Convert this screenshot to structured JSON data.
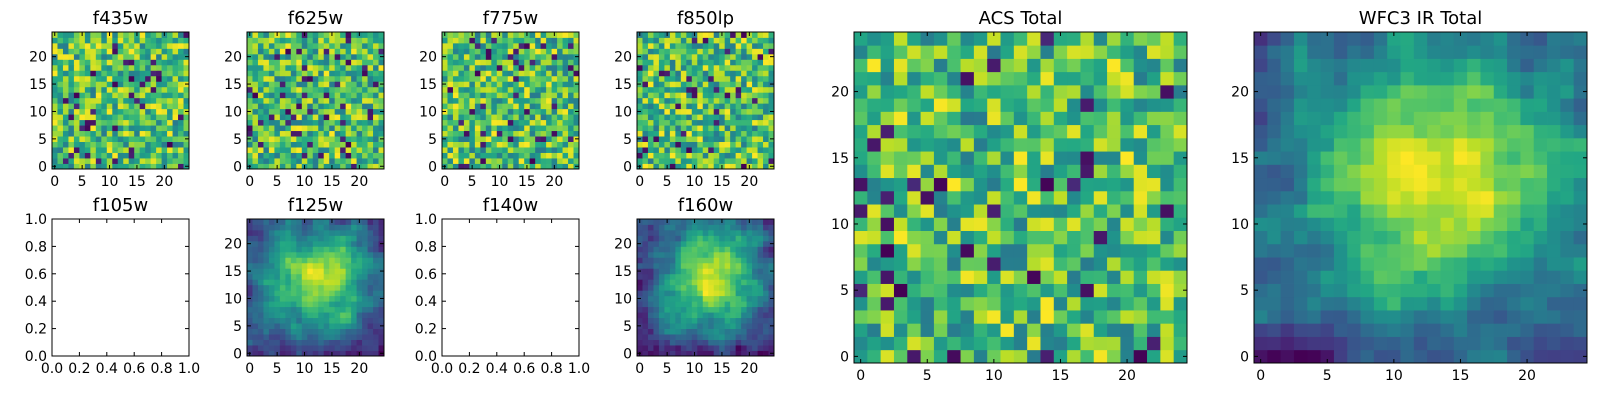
{
  "chart_data": [
    {
      "id": "f435w",
      "type": "heatmap",
      "title": "f435w",
      "grid": [
        25,
        25
      ],
      "seed": 11,
      "colormap": "viridis",
      "value_range": [
        0,
        1
      ],
      "structure": "noise",
      "xticks": [
        "0",
        "5",
        "10",
        "15",
        "20"
      ],
      "yticks": [
        "0",
        "5",
        "10",
        "15",
        "20"
      ],
      "has_data": true
    },
    {
      "id": "f625w",
      "type": "heatmap",
      "title": "f625w",
      "grid": [
        25,
        25
      ],
      "seed": 23,
      "colormap": "viridis",
      "value_range": [
        0,
        1
      ],
      "structure": "noise",
      "xticks": [
        "0",
        "5",
        "10",
        "15",
        "20"
      ],
      "yticks": [
        "0",
        "5",
        "10",
        "15",
        "20"
      ],
      "has_data": true
    },
    {
      "id": "f775w",
      "type": "heatmap",
      "title": "f775w",
      "grid": [
        25,
        25
      ],
      "seed": 37,
      "colormap": "viridis",
      "value_range": [
        0,
        1
      ],
      "structure": "noise",
      "xticks": [
        "0",
        "5",
        "10",
        "15",
        "20"
      ],
      "yticks": [
        "0",
        "5",
        "10",
        "15",
        "20"
      ],
      "has_data": true
    },
    {
      "id": "f850lp",
      "type": "heatmap",
      "title": "f850lp",
      "grid": [
        25,
        25
      ],
      "seed": 41,
      "colormap": "viridis",
      "value_range": [
        0,
        1
      ],
      "structure": "noise",
      "xticks": [
        "0",
        "5",
        "10",
        "15",
        "20"
      ],
      "yticks": [
        "0",
        "5",
        "10",
        "15",
        "20"
      ],
      "has_data": true
    },
    {
      "id": "f105w",
      "type": "heatmap",
      "title": "f105w",
      "grid": [
        0,
        0
      ],
      "xticks": [
        "0.0",
        "0.2",
        "0.4",
        "0.6",
        "0.8",
        "1.0"
      ],
      "yticks": [
        "0.0",
        "0.2",
        "0.4",
        "0.6",
        "0.8",
        "1.0"
      ],
      "xlim": [
        0,
        1
      ],
      "ylim": [
        0,
        1
      ],
      "has_data": false
    },
    {
      "id": "f125w",
      "type": "heatmap",
      "title": "f125w",
      "grid": [
        25,
        25
      ],
      "seed": 53,
      "colormap": "viridis",
      "value_range": [
        0,
        1
      ],
      "structure": "smooth-central",
      "xticks": [
        "0",
        "5",
        "10",
        "15",
        "20"
      ],
      "yticks": [
        "0",
        "5",
        "10",
        "15",
        "20"
      ],
      "has_data": true
    },
    {
      "id": "f140w",
      "type": "heatmap",
      "title": "f140w",
      "grid": [
        0,
        0
      ],
      "xticks": [
        "0.0",
        "0.2",
        "0.4",
        "0.6",
        "0.8",
        "1.0"
      ],
      "yticks": [
        "0.0",
        "0.2",
        "0.4",
        "0.6",
        "0.8",
        "1.0"
      ],
      "xlim": [
        0,
        1
      ],
      "ylim": [
        0,
        1
      ],
      "has_data": false
    },
    {
      "id": "f160w",
      "type": "heatmap",
      "title": "f160w",
      "grid": [
        25,
        25
      ],
      "seed": 67,
      "colormap": "viridis",
      "value_range": [
        0,
        1
      ],
      "structure": "smooth-central",
      "xticks": [
        "0",
        "5",
        "10",
        "15",
        "20"
      ],
      "yticks": [
        "0",
        "5",
        "10",
        "15",
        "20"
      ],
      "has_data": true
    },
    {
      "id": "acs-total",
      "type": "heatmap",
      "title": "ACS Total",
      "grid": [
        25,
        25
      ],
      "seed": 79,
      "colormap": "viridis",
      "value_range": [
        0,
        1
      ],
      "structure": "noise",
      "xticks": [
        "0",
        "5",
        "10",
        "15",
        "20"
      ],
      "yticks": [
        "0",
        "5",
        "10",
        "15",
        "20"
      ],
      "has_data": true
    },
    {
      "id": "wfc3-ir-total",
      "type": "heatmap",
      "title": "WFC3 IR Total",
      "grid": [
        25,
        25
      ],
      "seed": 97,
      "colormap": "viridis",
      "value_range": [
        0,
        1
      ],
      "structure": "smooth-central",
      "xticks": [
        "0",
        "5",
        "10",
        "15",
        "20"
      ],
      "yticks": [
        "0",
        "5",
        "10",
        "15",
        "20"
      ],
      "has_data": true
    }
  ]
}
